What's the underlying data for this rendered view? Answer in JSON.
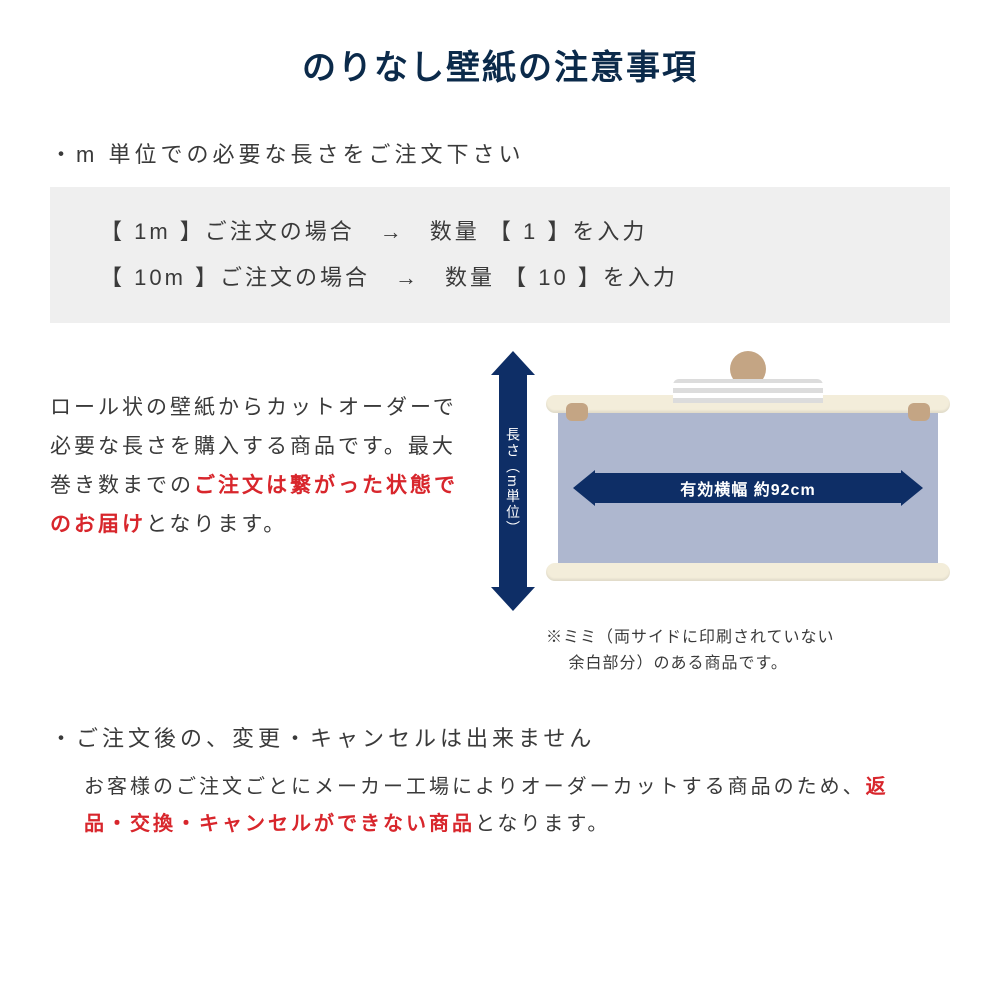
{
  "colors": {
    "title": "#0b2a4a",
    "text": "#3a3a3a",
    "red": "#d8262c",
    "box_bg": "#efefef",
    "arrow": "#0e2e66",
    "sheet": "#aeb7cf",
    "roll": "#f3edda"
  },
  "fonts": {
    "title_size": 34,
    "heading_size": 22,
    "body_size": 21,
    "footnote_size": 16
  },
  "title": "のりなし壁紙の注意事項",
  "section1": {
    "heading": "・m 単位での必要な長さをご注文下さい",
    "examples": {
      "line1": "【 1m 】ご注文の場合　→　数量 【 1 】を入力",
      "line2": "【 10m 】ご注文の場合　→　数量 【 10 】を入力"
    },
    "body_parts": {
      "p1a": "ロール状の壁紙からカットオーダーで必要な長さを購入する商品です。最大巻き数までの",
      "p1red": "ご注文は繋がった状態でのお届け",
      "p1b": "となります。"
    },
    "diagram": {
      "vertical_label": "長さ（m単位）",
      "horizontal_label": "有効横幅 約92cm"
    },
    "footnote": "※ミミ（両サイドに印刷されていない\n　 余白部分）のある商品です。"
  },
  "section2": {
    "heading": "・ご注文後の、変更・キャンセルは出来ません",
    "body_parts": {
      "p2a": "お客様のご注文ごとにメーカー工場によりオーダーカットする商品のため、",
      "p2red": "返品・交換・キャンセルができない商品",
      "p2b": "となります。"
    }
  }
}
